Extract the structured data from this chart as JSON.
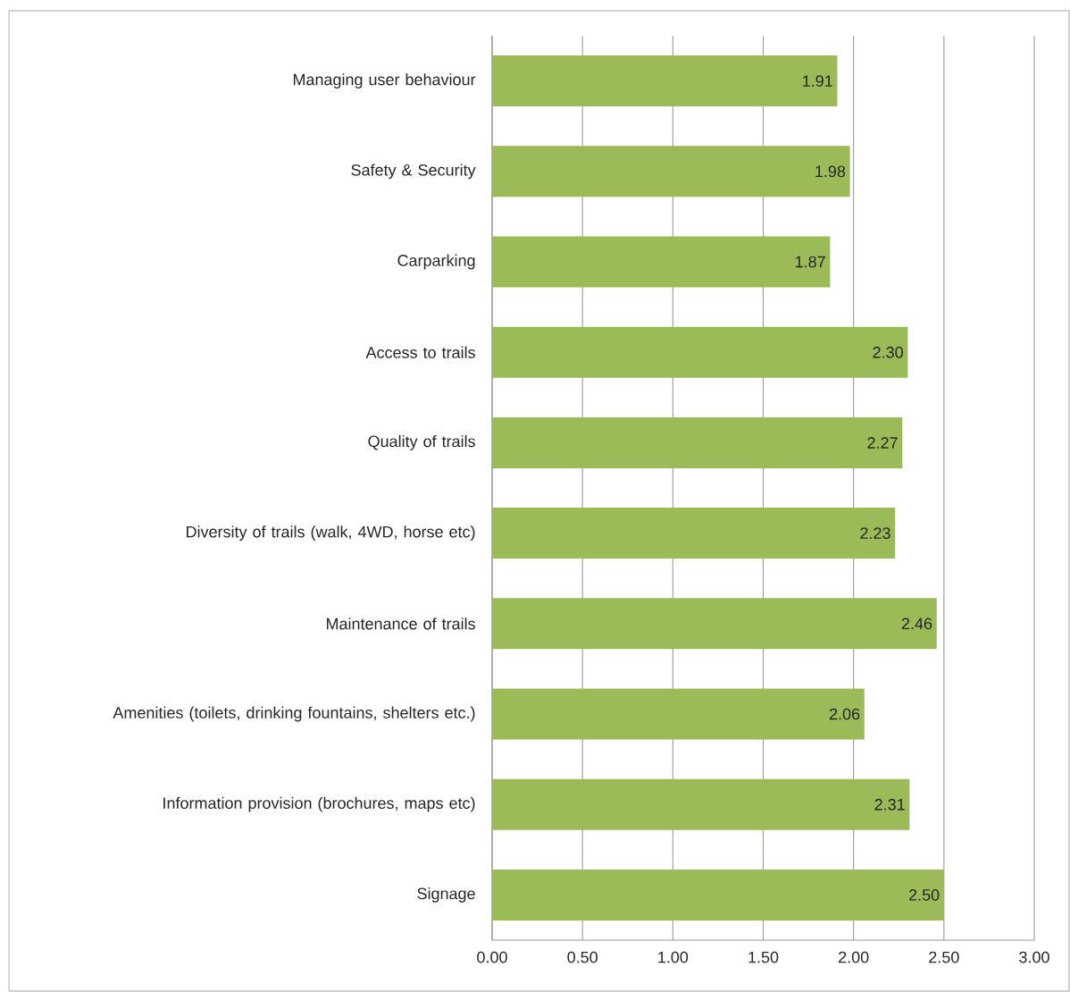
{
  "chart_data": {
    "type": "bar",
    "orientation": "horizontal",
    "categories": [
      "Managing user behaviour",
      "Safety & Security",
      "Carparking",
      "Access to trails",
      "Quality of trails",
      "Diversity of trails (walk, 4WD, horse etc)",
      "Maintenance of trails",
      "Amenities (toilets, drinking fountains, shelters etc.)",
      "Information provision (brochures, maps etc)",
      "Signage"
    ],
    "values": [
      1.91,
      1.98,
      1.87,
      2.3,
      2.27,
      2.23,
      2.46,
      2.06,
      2.31,
      2.5
    ],
    "value_labels": [
      "1.91",
      "1.98",
      "1.87",
      "2.30",
      "2.27",
      "2.23",
      "2.46",
      "2.06",
      "2.31",
      "2.50"
    ],
    "color": "#9bbb59",
    "xlim": [
      0,
      3
    ],
    "xticks": [
      {
        "value": 0,
        "label": "0.00"
      },
      {
        "value": 0.5,
        "label": "0.50"
      },
      {
        "value": 1,
        "label": "1.00"
      },
      {
        "value": 1.5,
        "label": "1.50"
      },
      {
        "value": 2,
        "label": "2.00"
      },
      {
        "value": 2.5,
        "label": "2.50"
      },
      {
        "value": 3,
        "label": "3.00"
      }
    ],
    "grid": "x"
  }
}
